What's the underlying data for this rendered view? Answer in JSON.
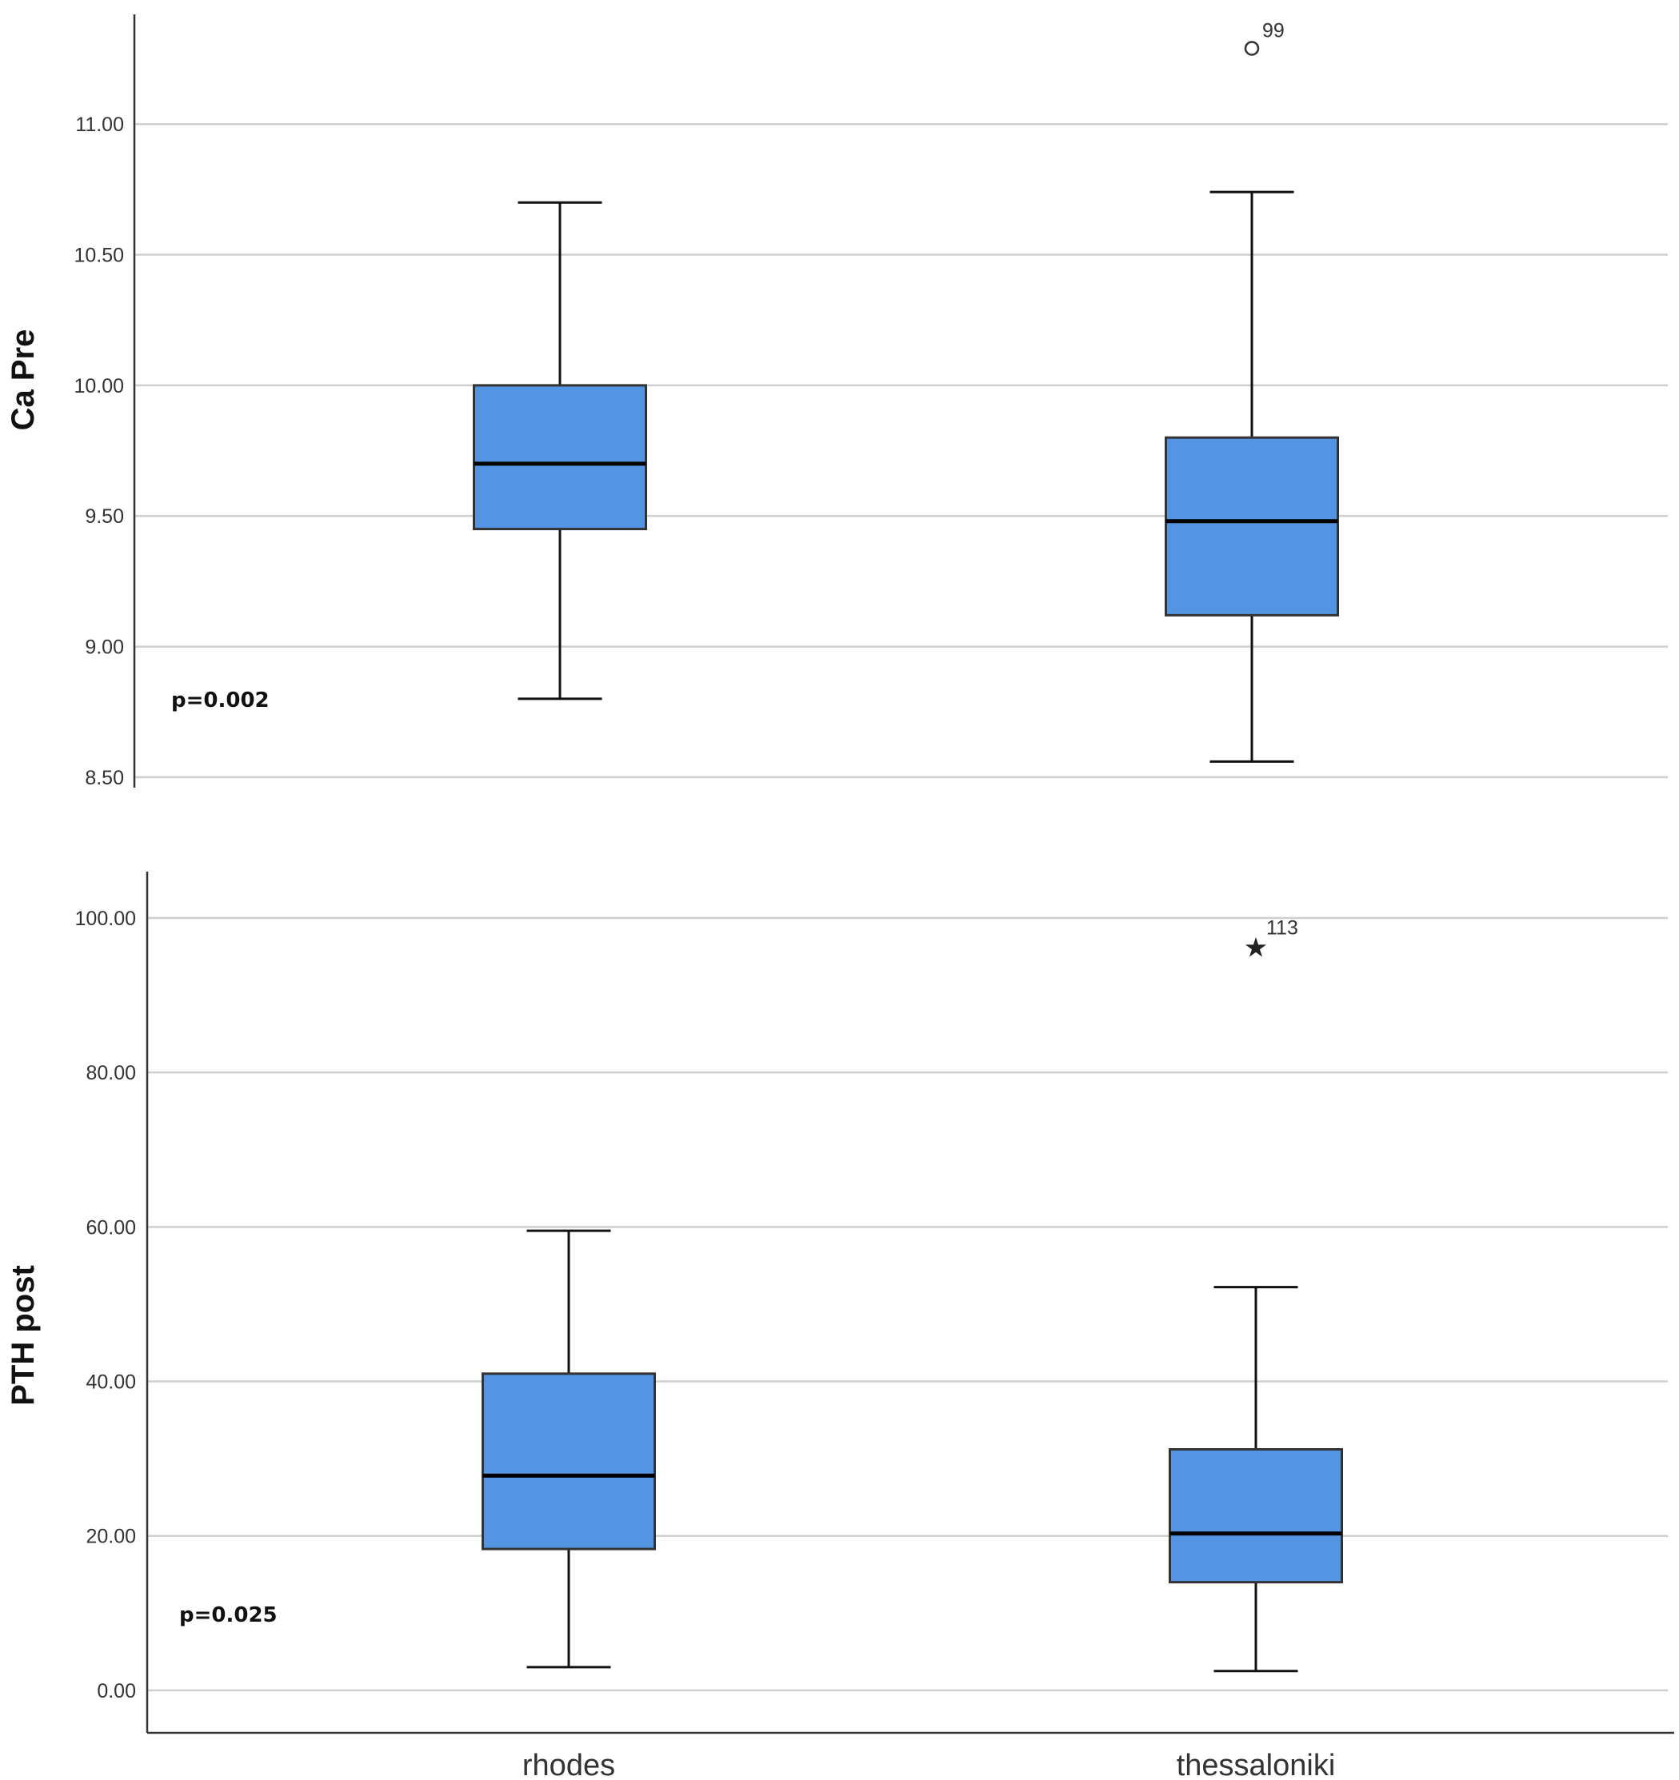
{
  "chart_data": [
    {
      "type": "box",
      "ylabel": "Ca Pre",
      "ylim": [
        8.46,
        11.42
      ],
      "yticks": [
        8.5,
        9.0,
        9.5,
        10.0,
        10.5,
        11.0
      ],
      "ytick_labels": [
        "8.50",
        "9.00",
        "9.50",
        "10.00",
        "10.50",
        "11.00"
      ],
      "categories": [
        "rhodes",
        "thessaloniki"
      ],
      "boxes": [
        {
          "category": "rhodes",
          "whisker_low": 8.8,
          "q1": 9.45,
          "median": 9.7,
          "q3": 10.0,
          "whisker_high": 10.7,
          "outliers": []
        },
        {
          "category": "thessaloniki",
          "whisker_low": 8.56,
          "q1": 9.12,
          "median": 9.48,
          "q3": 9.8,
          "whisker_high": 10.74,
          "outliers": [
            {
              "value": 11.29,
              "label": "99",
              "marker": "circle"
            }
          ]
        }
      ],
      "annotation": "p=0.002",
      "grid": true,
      "box_color": "#5495e3"
    },
    {
      "type": "box",
      "ylabel": "PTH post",
      "xlabel": "",
      "ylim": [
        -5.5,
        106
      ],
      "yticks": [
        0,
        20,
        40,
        60,
        80,
        100
      ],
      "ytick_labels": [
        "0.00",
        "20.00",
        "40.00",
        "60.00",
        "80.00",
        "100.00"
      ],
      "categories": [
        "rhodes",
        "thessaloniki"
      ],
      "boxes": [
        {
          "category": "rhodes",
          "whisker_low": 3.0,
          "q1": 18.3,
          "median": 27.8,
          "q3": 41.0,
          "whisker_high": 59.5,
          "outliers": []
        },
        {
          "category": "thessaloniki",
          "whisker_low": 2.5,
          "q1": 14.0,
          "median": 20.3,
          "q3": 31.2,
          "whisker_high": 52.2,
          "outliers": [
            {
              "value": 96.4,
              "label": "113",
              "marker": "star"
            }
          ]
        }
      ],
      "annotation": "p=0.025",
      "grid": true,
      "box_color": "#5495e3"
    }
  ]
}
